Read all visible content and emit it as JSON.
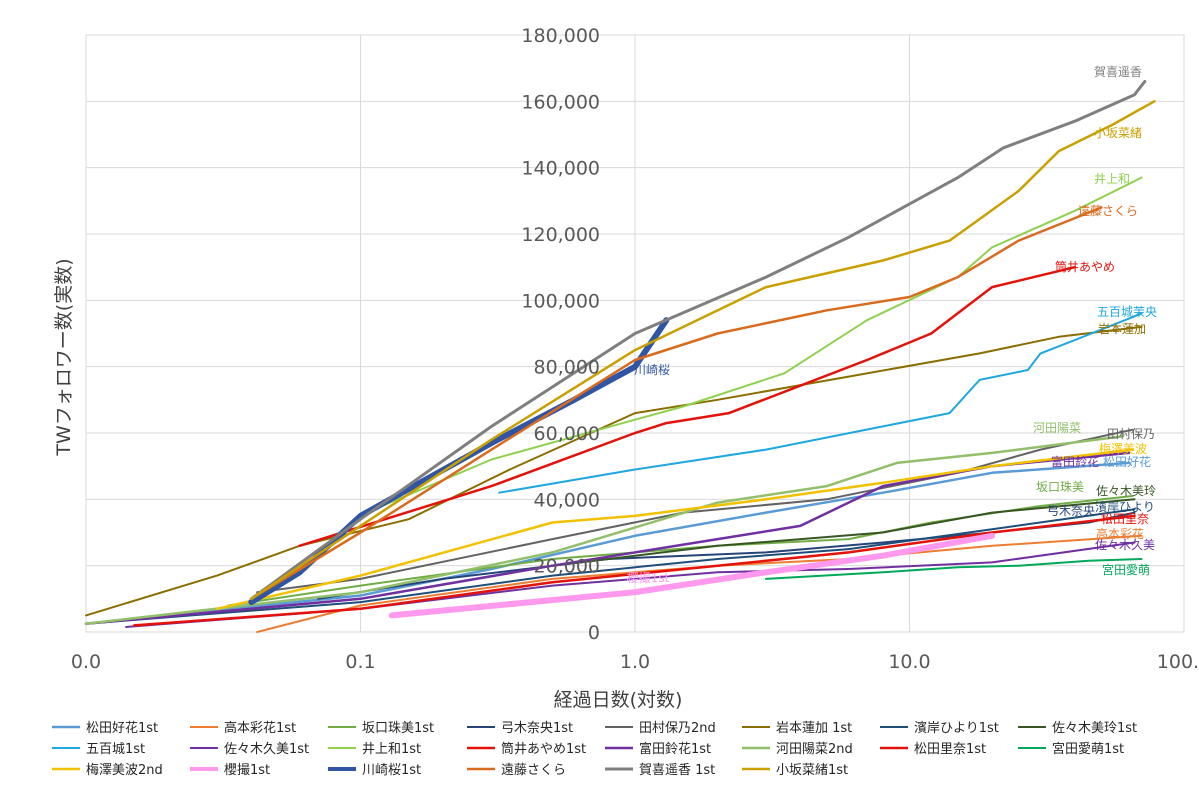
{
  "chart_data": {
    "type": "line",
    "xscale": "log",
    "xlim": [
      0.01,
      100
    ],
    "ylim": [
      0,
      180000
    ],
    "xlabel": "経過日数(対数)",
    "ylabel": "TWフォロワー数(実数)",
    "x_tick_labels": [
      "0.0",
      "0.1",
      "1.0",
      "10.0",
      "100.0"
    ],
    "y_tick_labels": [
      "0",
      "20,000",
      "40,000",
      "60,000",
      "80,000",
      "100,000",
      "120,000",
      "140,000",
      "160,000",
      "180,000"
    ],
    "grid": true,
    "legend_position": "bottom",
    "series": [
      {
        "name": "松田好花1st",
        "label": "松田好花",
        "color": "#5B9BD5",
        "width": 2.5,
        "points": [
          [
            0.01,
            2500
          ],
          [
            0.1,
            11000
          ],
          [
            0.3,
            19000
          ],
          [
            1,
            29000
          ],
          [
            3,
            36000
          ],
          [
            8,
            42000
          ],
          [
            20,
            48000
          ],
          [
            63,
            51000
          ]
        ]
      },
      {
        "name": "高本彩花1st",
        "label": "高本彩花",
        "color": "#ED7D31",
        "width": 2,
        "points": [
          [
            0.042,
            0
          ],
          [
            0.1,
            8000
          ],
          [
            0.5,
            16000
          ],
          [
            2,
            20000
          ],
          [
            6,
            22000
          ],
          [
            20,
            26000
          ],
          [
            70,
            29000
          ]
        ]
      },
      {
        "name": "坂口珠美1st",
        "label": "坂口珠美",
        "color": "#70AD47",
        "width": 2,
        "points": [
          [
            0.033,
            8000
          ],
          [
            0.1,
            14000
          ],
          [
            0.5,
            22000
          ],
          [
            2,
            26000
          ],
          [
            6,
            28000
          ],
          [
            12,
            33000
          ],
          [
            30,
            38000
          ],
          [
            65,
            41000
          ]
        ]
      },
      {
        "name": "弓木奈央1st",
        "label": "弓木奈央",
        "color": "#264478",
        "width": 2,
        "points": [
          [
            0.07,
            10000
          ],
          [
            0.2,
            16000
          ],
          [
            0.8,
            22000
          ],
          [
            3,
            24000
          ],
          [
            8,
            27000
          ],
          [
            20,
            30000
          ],
          [
            45,
            33000
          ],
          [
            66,
            36000
          ]
        ]
      },
      {
        "name": "田村保乃2nd",
        "label": "田村保乃",
        "color": "#636363",
        "width": 2,
        "points": [
          [
            0.042,
            12000
          ],
          [
            0.1,
            16000
          ],
          [
            0.5,
            28000
          ],
          [
            1.5,
            36000
          ],
          [
            5,
            40000
          ],
          [
            15,
            48000
          ],
          [
            30,
            55000
          ],
          [
            65,
            61000
          ]
        ]
      },
      {
        "name": "岩本蓮加 1st",
        "label": "岩本蓮加",
        "color": "#8B6E00",
        "width": 2,
        "points": [
          [
            0.01,
            5000
          ],
          [
            0.03,
            17000
          ],
          [
            0.06,
            26000
          ],
          [
            0.15,
            34000
          ],
          [
            0.35,
            49000
          ],
          [
            1,
            66000
          ],
          [
            2,
            70000
          ],
          [
            6,
            77000
          ],
          [
            18,
            84000
          ],
          [
            35,
            89000
          ],
          [
            70,
            92000
          ]
        ]
      },
      {
        "name": "濱岸ひより1st",
        "label": "濱岸ひより",
        "color": "#1F4E79",
        "width": 2,
        "points": [
          [
            0.01,
            2500
          ],
          [
            0.1,
            9000
          ],
          [
            0.5,
            17000
          ],
          [
            2,
            22000
          ],
          [
            6,
            25000
          ],
          [
            20,
            31000
          ],
          [
            66,
            37000
          ]
        ]
      },
      {
        "name": "佐々木美玲1st",
        "label": "佐々木美玲",
        "color": "#375623",
        "width": 2,
        "points": [
          [
            0.01,
            2500
          ],
          [
            0.1,
            10000
          ],
          [
            0.5,
            20000
          ],
          [
            2,
            26000
          ],
          [
            8,
            30000
          ],
          [
            20,
            36000
          ],
          [
            66,
            40000
          ]
        ]
      },
      {
        "name": "五百城1st",
        "label": "五百城茉央",
        "color": "#1FA8DE",
        "width": 2,
        "points": [
          [
            0.32,
            42000
          ],
          [
            1,
            49000
          ],
          [
            3,
            55000
          ],
          [
            8,
            62000
          ],
          [
            14,
            66000
          ],
          [
            18,
            76000
          ],
          [
            27,
            79000
          ],
          [
            30,
            84000
          ],
          [
            40,
            88000
          ],
          [
            70,
            96000
          ]
        ]
      },
      {
        "name": "佐々木久美1st",
        "label": "佐々木久美",
        "color": "#7030A0",
        "width": 2,
        "points": [
          [
            0.014,
            1500
          ],
          [
            0.1,
            7000
          ],
          [
            0.5,
            14000
          ],
          [
            2,
            18000
          ],
          [
            6,
            19000
          ],
          [
            20,
            21000
          ],
          [
            66,
            27000
          ]
        ]
      },
      {
        "name": "井上和1st",
        "label": "井上和",
        "color": "#8FD14F",
        "width": 2,
        "points": [
          [
            0.12,
            38000
          ],
          [
            0.3,
            52000
          ],
          [
            1,
            64000
          ],
          [
            1.5,
            68000
          ],
          [
            3.5,
            78000
          ],
          [
            7,
            94000
          ],
          [
            15,
            107000
          ],
          [
            20,
            116000
          ],
          [
            40,
            127000
          ],
          [
            70,
            137000
          ]
        ]
      },
      {
        "name": "筒井あやめ1st",
        "label": "筒井あやめ",
        "color": "#E3120B",
        "width": 2.5,
        "points": [
          [
            0.06,
            26000
          ],
          [
            0.3,
            44000
          ],
          [
            1,
            60000
          ],
          [
            1.3,
            63000
          ],
          [
            2.2,
            66000
          ],
          [
            7,
            82000
          ],
          [
            12,
            90000
          ],
          [
            20,
            104000
          ],
          [
            40,
            110000
          ]
        ]
      },
      {
        "name": "富田鈴花1st",
        "label": "富田鈴花",
        "color": "#7030A0",
        "width": 2.5,
        "points": [
          [
            0.01,
            2500
          ],
          [
            0.1,
            10000
          ],
          [
            0.5,
            20000
          ],
          [
            2,
            28000
          ],
          [
            4,
            32000
          ],
          [
            8,
            44000
          ],
          [
            20,
            50000
          ],
          [
            63,
            54000
          ]
        ]
      },
      {
        "name": "河田陽菜2nd",
        "label": "河田陽菜",
        "color": "#92BF6A",
        "width": 2.5,
        "points": [
          [
            0.01,
            2500
          ],
          [
            0.1,
            12000
          ],
          [
            0.5,
            24000
          ],
          [
            2,
            39000
          ],
          [
            5,
            44000
          ],
          [
            9,
            51000
          ],
          [
            20,
            54000
          ],
          [
            60,
            59000
          ]
        ]
      },
      {
        "name": "松田里奈1st",
        "label": "松田里奈",
        "color": "#E3120B",
        "width": 2.5,
        "points": [
          [
            0.015,
            2000
          ],
          [
            0.1,
            7000
          ],
          [
            0.5,
            15000
          ],
          [
            2,
            20000
          ],
          [
            6,
            24000
          ],
          [
            20,
            30000
          ],
          [
            66,
            35000
          ]
        ]
      },
      {
        "name": "宮田愛萌1st",
        "label": "宮田愛萌",
        "color": "#00A859",
        "width": 2,
        "points": [
          [
            3,
            16000
          ],
          [
            8,
            18000
          ],
          [
            15,
            19500
          ],
          [
            25,
            20000
          ],
          [
            45,
            21500
          ],
          [
            70,
            22000
          ]
        ]
      },
      {
        "name": "梅澤美波2nd",
        "label": "梅澤美波",
        "color": "#F2C200",
        "width": 2.5,
        "points": [
          [
            0.03,
            7000
          ],
          [
            0.1,
            17000
          ],
          [
            0.5,
            33000
          ],
          [
            1,
            35000
          ],
          [
            3,
            40000
          ],
          [
            8,
            45000
          ],
          [
            20,
            50000
          ],
          [
            65,
            55000
          ]
        ]
      },
      {
        "name": "櫻撮1st",
        "label": "櫻撮1st",
        "color": "#FF99EE",
        "width": 6,
        "points": [
          [
            0.13,
            5000
          ],
          [
            1,
            12000
          ],
          [
            3,
            18000
          ],
          [
            8,
            23000
          ],
          [
            20,
            29000
          ]
        ]
      },
      {
        "name": "川崎桜1st",
        "label": "川崎桜",
        "color": "#2F55A4",
        "width": 6,
        "points": [
          [
            0.04,
            9000
          ],
          [
            0.06,
            18000
          ],
          [
            0.1,
            35000
          ],
          [
            0.3,
            57000
          ],
          [
            0.6,
            70000
          ],
          [
            1,
            80000
          ],
          [
            1.3,
            94000
          ]
        ]
      },
      {
        "name": "遠藤さくら",
        "label": "遠藤さくら",
        "color": "#D96B1F",
        "width": 2.5,
        "points": [
          [
            0.04,
            10000
          ],
          [
            0.1,
            30000
          ],
          [
            0.3,
            55000
          ],
          [
            1,
            82000
          ],
          [
            2,
            90000
          ],
          [
            5,
            97000
          ],
          [
            10,
            101000
          ],
          [
            15,
            107000
          ],
          [
            25,
            118000
          ],
          [
            50,
            128000
          ]
        ]
      },
      {
        "name": "賀喜遥香 1st",
        "label": "賀喜遥香",
        "color": "#7F7F7F",
        "width": 3,
        "points": [
          [
            0.04,
            10000
          ],
          [
            0.1,
            34000
          ],
          [
            0.3,
            62000
          ],
          [
            1,
            90000
          ],
          [
            3,
            107000
          ],
          [
            6,
            119000
          ],
          [
            15,
            137000
          ],
          [
            22,
            146000
          ],
          [
            40,
            154000
          ],
          [
            66,
            162000
          ],
          [
            72,
            166000
          ]
        ]
      },
      {
        "name": "小坂菜緒1st",
        "label": "小坂菜緒",
        "color": "#C9A000",
        "width": 2.5,
        "points": [
          [
            0.04,
            10000
          ],
          [
            0.1,
            32000
          ],
          [
            0.3,
            58000
          ],
          [
            1,
            85000
          ],
          [
            3,
            104000
          ],
          [
            8,
            112000
          ],
          [
            14,
            118000
          ],
          [
            25,
            133000
          ],
          [
            35,
            145000
          ],
          [
            55,
            153000
          ],
          [
            78,
            160000
          ]
        ]
      }
    ]
  }
}
